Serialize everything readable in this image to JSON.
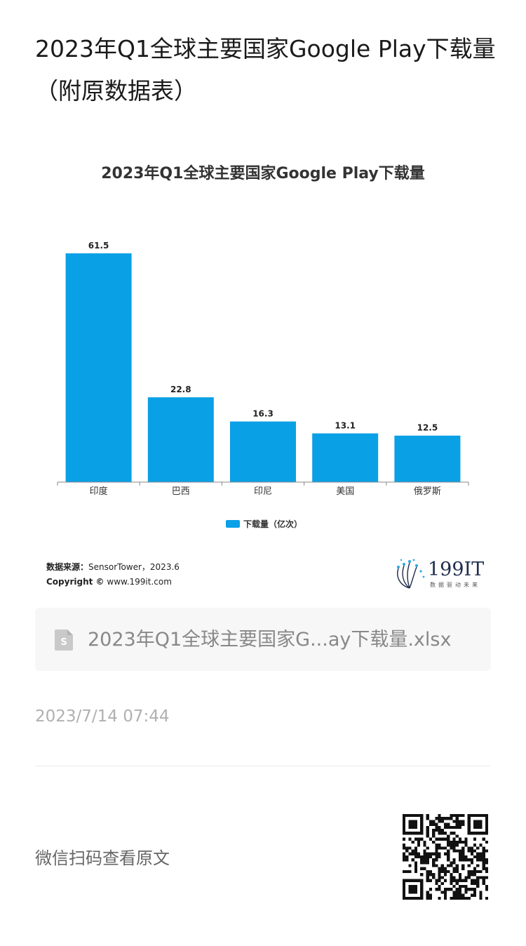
{
  "article": {
    "title": "2023年Q1全球主要国家Google Play下载量（附原数据表）",
    "publish_time": "2023/7/14 07:44",
    "qr_hint": "微信扫码查看原文"
  },
  "attachment": {
    "file_name": "2023年Q1全球主要国家G...ay下载量.xlsx",
    "icon": "spreadsheet-file-icon"
  },
  "source": {
    "label": "数据来源：",
    "value": "SensorTower，2023.6",
    "copyright_label": "Copyright ©",
    "copyright_value": "www.199it.com"
  },
  "logo": {
    "text": "199IT",
    "subtitle": "数据驱动未来"
  },
  "colors": {
    "bar": "#0aa0e6",
    "axis": "#888888"
  },
  "chart_data": {
    "type": "bar",
    "title": "2023年Q1全球主要国家Google Play下载量",
    "categories": [
      "印度",
      "巴西",
      "印尼",
      "美国",
      "俄罗斯"
    ],
    "series": [
      {
        "name": "下载量（亿次）",
        "values": [
          61.5,
          22.8,
          16.3,
          13.1,
          12.5
        ]
      }
    ],
    "data_labels": [
      "61.5",
      "22.8",
      "16.3",
      "13.1",
      "12.5"
    ],
    "ylim": [
      0,
      61.5
    ],
    "grid": false,
    "legend_position": "bottom"
  }
}
